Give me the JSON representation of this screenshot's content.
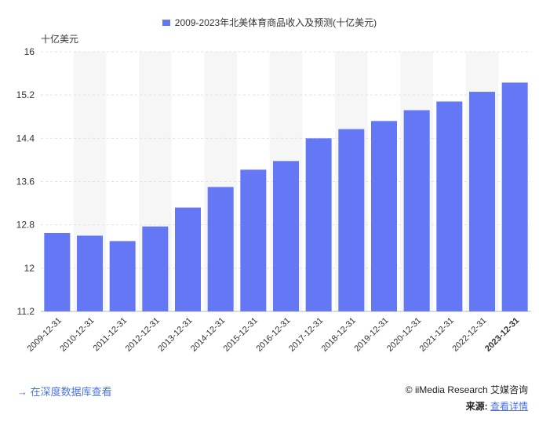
{
  "legend": {
    "label": "2009-2023年北美体育商品收入及预测(十亿美元)"
  },
  "unit_label": "十亿美元",
  "footer": {
    "db_link": "→ 在深度数据库查看",
    "credit": "© iiMedia Research 艾媒咨询",
    "source_label": "来源:",
    "source_link": "查看详情"
  },
  "colors": {
    "bar": "#6478f5",
    "stripe": "#f6f6f6",
    "grid": "#e2e2e2"
  },
  "chart_data": {
    "type": "bar",
    "categories": [
      "2009-12-31",
      "2010-12-31",
      "2011-12-31",
      "2012-12-31",
      "2013-12-31",
      "2014-12-31",
      "2015-12-31",
      "2016-12-31",
      "2017-12-31",
      "2018-12-31",
      "2019-12-31",
      "2020-12-31",
      "2021-12-31",
      "2022-12-31",
      "2023-12-31"
    ],
    "series": [
      {
        "name": "2009-2023年北美体育商品收入及预测(十亿美元)",
        "values": [
          12.65,
          12.6,
          12.5,
          12.77,
          13.12,
          13.5,
          13.82,
          13.98,
          14.4,
          14.57,
          14.72,
          14.92,
          15.08,
          15.26,
          15.43
        ]
      }
    ],
    "ylim": [
      11.2,
      16
    ],
    "yticks": [
      11.2,
      12,
      12.8,
      13.6,
      14.4,
      15.2,
      16
    ],
    "ylabel": "十亿美元",
    "xlabel": "",
    "grid": true,
    "legend_position": "top-center"
  }
}
